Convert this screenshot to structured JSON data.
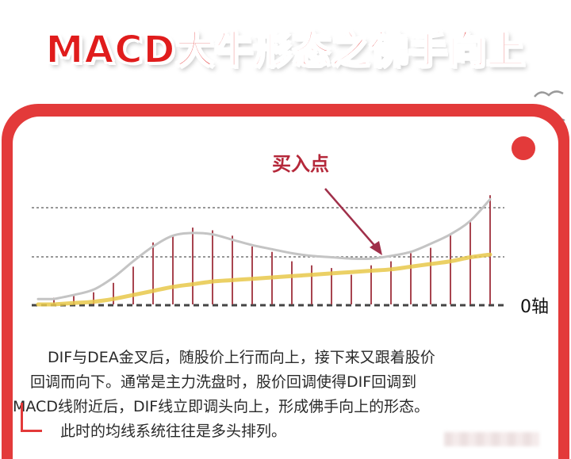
{
  "title": "MACD大牛形态之佛手向上",
  "chart": {
    "buy_point_label": "买入点",
    "zero_axis_label": "0轴"
  },
  "description": {
    "line1": "DIF与DEA金叉后，随股价上行而向上，接下来又跟着股价",
    "line2": "回调而向下。通常是主力洗盘时，股价回调使得DIF回调到",
    "line3": "MACD线附近后，DIF线立即调头向上，形成佛手向上的形态。",
    "line4": "此时的均线系统往往是多头排列。"
  },
  "colors": {
    "accent_red": "#e33a3a",
    "title_red": "#e01c1c",
    "bar_color": "#a8444f",
    "dif_line": "#bdbdbd",
    "dea_line": "#e8c84a",
    "arrow": "#a0304a"
  },
  "chart_data": {
    "type": "bar",
    "bar_heights": [
      0.05,
      0.07,
      0.09,
      0.16,
      0.28,
      0.46,
      0.51,
      0.57,
      0.55,
      0.51,
      0.43,
      0.39,
      0.32,
      0.29,
      0.27,
      0.22,
      0.29,
      0.32,
      0.38,
      0.42,
      0.52,
      0.61,
      0.81
    ],
    "dif_curve": [
      0.04,
      0.07,
      0.11,
      0.2,
      0.32,
      0.43,
      0.51,
      0.53,
      0.52,
      0.48,
      0.44,
      0.41,
      0.38,
      0.36,
      0.35,
      0.34,
      0.34,
      0.36,
      0.39,
      0.45,
      0.52,
      0.62,
      0.78
    ],
    "dea_curve": [
      0.0,
      0.01,
      0.02,
      0.04,
      0.07,
      0.1,
      0.13,
      0.15,
      0.17,
      0.18,
      0.19,
      0.2,
      0.21,
      0.22,
      0.23,
      0.24,
      0.25,
      0.26,
      0.28,
      0.3,
      0.32,
      0.35,
      0.37
    ],
    "reference_lines": [
      "dashed",
      "dashed",
      "zero-axis"
    ]
  }
}
